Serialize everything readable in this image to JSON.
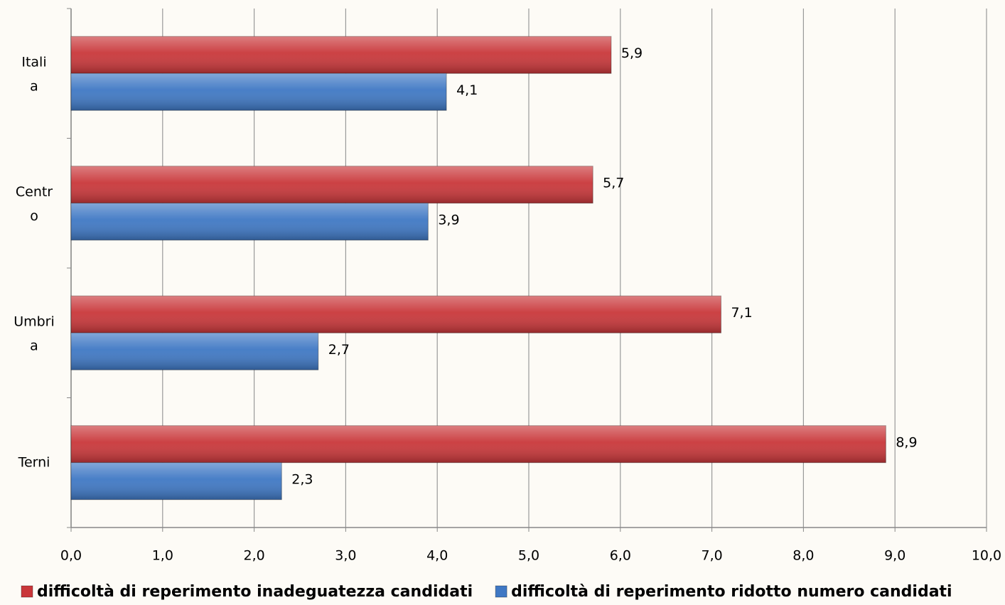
{
  "chart_data": {
    "type": "hbar",
    "categories": [
      "Italia",
      "Centro",
      "Umbria",
      "Terni"
    ],
    "series": [
      {
        "name": "difficoltà di reperimento inadeguatezza candidati",
        "color": "#c9373a",
        "values": [
          5.9,
          5.7,
          7.1,
          8.9
        ],
        "value_labels": [
          "5,9",
          "5,7",
          "7,1",
          "8,9"
        ]
      },
      {
        "name": "difficoltà di reperimento ridotto numero candidati",
        "color": "#3f78c4",
        "values": [
          4.1,
          3.9,
          2.7,
          2.3
        ],
        "value_labels": [
          "4,1",
          "3,9",
          "2,7",
          "2,3"
        ]
      }
    ],
    "xlim": [
      0,
      10
    ],
    "xticks": [
      {
        "value": 0,
        "label": "0,0"
      },
      {
        "value": 1,
        "label": "1,0"
      },
      {
        "value": 2,
        "label": "2,0"
      },
      {
        "value": 3,
        "label": "3,0"
      },
      {
        "value": 4,
        "label": "4,0"
      },
      {
        "value": 5,
        "label": "5,0"
      },
      {
        "value": 6,
        "label": "6,0"
      },
      {
        "value": 7,
        "label": "7,0"
      },
      {
        "value": 8,
        "label": "8,0"
      },
      {
        "value": 9,
        "label": "9,0"
      },
      {
        "value": 10,
        "label": "10,0"
      }
    ],
    "grid": true,
    "legend": "bottom"
  }
}
